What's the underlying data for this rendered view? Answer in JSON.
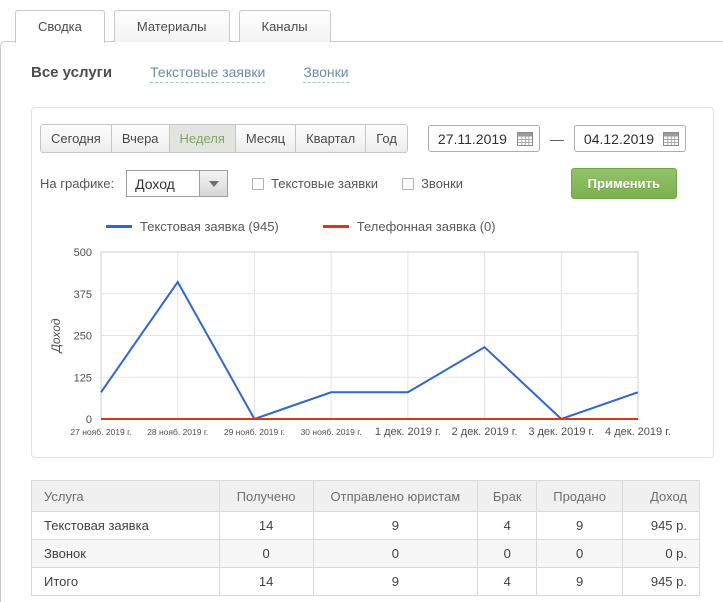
{
  "tabs": [
    {
      "label": "Сводка",
      "active": true
    },
    {
      "label": "Материалы",
      "active": false
    },
    {
      "label": "Каналы",
      "active": false
    }
  ],
  "service_filters": {
    "all": "Все услуги",
    "text_requests": "Текстовые заявки",
    "calls": "Звонки"
  },
  "period_buttons": [
    {
      "label": "Сегодня",
      "active": false
    },
    {
      "label": "Вчера",
      "active": false
    },
    {
      "label": "Неделя",
      "active": true
    },
    {
      "label": "Месяц",
      "active": false
    },
    {
      "label": "Квартал",
      "active": false
    },
    {
      "label": "Год",
      "active": false
    }
  ],
  "date_range": {
    "from": "27.11.2019",
    "separator": "—",
    "to": "04.12.2019"
  },
  "graph_controls": {
    "label": "На графике:",
    "metric": "Доход",
    "checkboxes": [
      {
        "label": "Текстовые заявки",
        "checked": false
      },
      {
        "label": "Звонки",
        "checked": false
      }
    ],
    "apply": "Применить"
  },
  "chart_data": {
    "type": "line",
    "x": [
      "27 нояб. 2019 г.",
      "28 нояб. 2019 г.",
      "29 нояб. 2019 г.",
      "30 нояб. 2019 г.",
      "1 дек. 2019 г.",
      "2 дек. 2019 г.",
      "3 дек. 2019 г.",
      "4 дек. 2019 г."
    ],
    "series": [
      {
        "name": "Текстовая заявка (945)",
        "color": "#3366cc",
        "values": [
          80,
          410,
          0,
          80,
          80,
          215,
          0,
          80
        ]
      },
      {
        "name": "Телефонная заявка (0)",
        "color": "#dc3912",
        "values": [
          0,
          0,
          0,
          0,
          0,
          0,
          0,
          0
        ]
      }
    ],
    "ylabel": "Доход",
    "yticks": [
      0,
      125,
      250,
      375,
      500
    ],
    "ylim": [
      0,
      500
    ],
    "grid": true,
    "legend_position": "top-left"
  },
  "table": {
    "headers": [
      "Услуга",
      "Получено",
      "Отправлено юристам",
      "Брак",
      "Продано",
      "Доход"
    ],
    "rows": [
      {
        "cells": [
          "Текстовая заявка",
          "14",
          "9",
          "4",
          "9",
          "945 р."
        ]
      },
      {
        "cells": [
          "Звонок",
          "0",
          "0",
          "0",
          "0",
          "0 р."
        ]
      },
      {
        "cells": [
          "Итого",
          "14",
          "9",
          "4",
          "9",
          "945 р."
        ]
      }
    ]
  },
  "colors": {
    "accent_green": "#7cb14e",
    "active_period_text": "#84a464",
    "link_blue_gray": "#7189a5",
    "series_blue": "#3366cc",
    "series_red": "#dc3912"
  }
}
